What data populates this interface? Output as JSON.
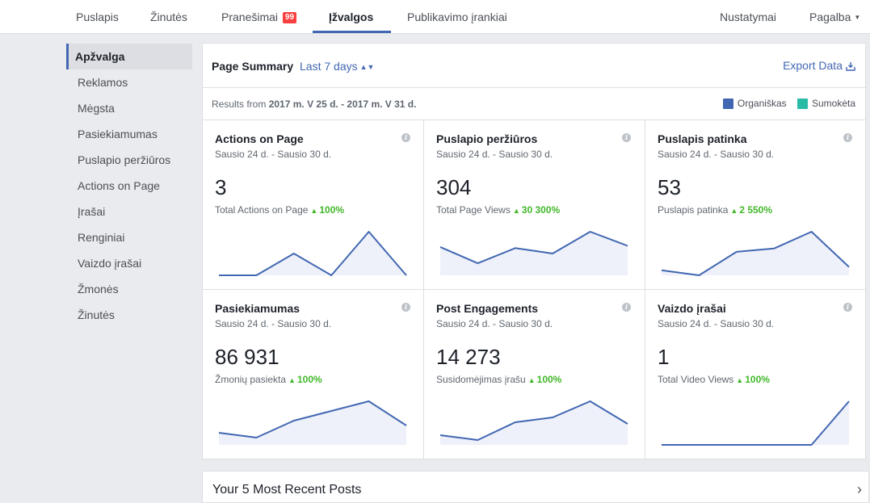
{
  "topnav": {
    "tabs": [
      {
        "label": "Puslapis"
      },
      {
        "label": "Žinutės"
      },
      {
        "label": "Pranešimai",
        "badge": "99"
      },
      {
        "label": "Įžvalgos",
        "active": true
      },
      {
        "label": "Publikavimo įrankiai"
      }
    ],
    "settings": "Nustatymai",
    "help": "Pagalba"
  },
  "sidebar": {
    "items": [
      {
        "label": "Apžvalga",
        "active": true
      },
      {
        "label": "Reklamos"
      },
      {
        "label": "Mėgsta"
      },
      {
        "label": "Pasiekiamumas"
      },
      {
        "label": "Puslapio peržiūros"
      },
      {
        "label": "Actions on Page"
      },
      {
        "label": "Įrašai"
      },
      {
        "label": "Renginiai"
      },
      {
        "label": "Vaizdo įrašai"
      },
      {
        "label": "Žmonės"
      },
      {
        "label": "Žinutės"
      }
    ]
  },
  "summary": {
    "title": "Page Summary",
    "range": "Last 7 days",
    "export": "Export Data",
    "results_prefix": "Results from",
    "results_range": "2017 m. V 25 d. - 2017 m. V 31 d.",
    "legend": [
      {
        "label": "Organiškas",
        "color": "#4267b2"
      },
      {
        "label": "Sumokėta",
        "color": "#2abba7"
      }
    ]
  },
  "colors": {
    "line": "#4267b2",
    "fill": "#eef1f9",
    "positive": "#42b72a"
  },
  "cards": [
    {
      "title": "Actions on Page",
      "dates": "Sausio 24 d. - Sausio 30 d.",
      "value": "3",
      "label": "Total Actions on Page",
      "change": "100%",
      "spark": [
        0,
        0,
        1,
        0,
        2,
        0
      ]
    },
    {
      "title": "Puslapio peržiūros",
      "dates": "Sausio 24 d. - Sausio 30 d.",
      "value": "304",
      "label": "Total Page Views",
      "change": "30 300%",
      "spark": [
        26,
        11,
        25,
        20,
        40,
        27
      ]
    },
    {
      "title": "Puslapis patinka",
      "dates": "Sausio 24 d. - Sausio 30 d.",
      "value": "53",
      "label": "Puslapis patinka",
      "change": "2 550%",
      "spark": [
        3,
        0,
        14,
        16,
        26,
        5
      ]
    },
    {
      "title": "Pasiekiamumas",
      "dates": "Sausio 24 d. - Sausio 30 d.",
      "value": "86 931",
      "label": "Žmonių pasiekta",
      "change": "100%",
      "spark": [
        5,
        3,
        10,
        14,
        18,
        8
      ]
    },
    {
      "title": "Post Engagements",
      "dates": "Sausio 24 d. - Sausio 30 d.",
      "value": "14 273",
      "label": "Susidomėjimas įrašu",
      "change": "100%",
      "spark": [
        6,
        3,
        14,
        17,
        27,
        13
      ]
    },
    {
      "title": "Vaizdo įrašai",
      "dates": "Sausio 24 d. - Sausio 30 d.",
      "value": "1",
      "label": "Total Video Views",
      "change": "100%",
      "spark": [
        0,
        0,
        0,
        0,
        0,
        1
      ]
    }
  ],
  "recent": {
    "title": "Your 5 Most Recent Posts"
  }
}
